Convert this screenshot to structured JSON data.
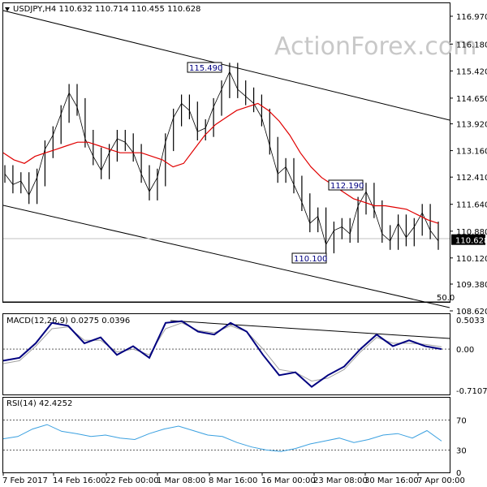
{
  "header": {
    "main": "USDJPY,H4  110.632 110.714 110.455 110.628",
    "macd": "MACD(12,26,9) 0.0275 0.0396",
    "rsi": "RSI(14) 42.4252"
  },
  "watermark": "ActionForex.com",
  "colors": {
    "price": "#000000",
    "ma": "#e00000",
    "macd": "#000080",
    "signal": "#a0a0a0",
    "rsi": "#3aa0e0",
    "channel": "#000000",
    "background": "#ffffff"
  },
  "chart_data": [
    {
      "type": "line",
      "panel": "price",
      "title": "USDJPY,H4",
      "ylim": [
        108.62,
        116.97
      ],
      "y_ticks": [
        "116.970",
        "116.180",
        "115.420",
        "114.650",
        "113.920",
        "113.160",
        "112.410",
        "111.640",
        "110.880",
        "110.120",
        "109.380",
        "108.620"
      ],
      "x_ticks": [
        "7 Feb 2017",
        "14 Feb 16:00",
        "22 Feb 00:00",
        "1 Mar 08:00",
        "8 Mar 16:00",
        "16 Mar 00:00",
        "23 Mar 08:00",
        "30 Mar 16:00",
        "7 Apr 00:00"
      ],
      "last_price": "110.628",
      "series": [
        {
          "values": [
            112.5,
            112.2,
            112.3,
            111.9,
            112.4,
            113.2,
            113.6,
            114.2,
            114.8,
            114.4,
            113.5,
            113.0,
            112.6,
            113.1,
            113.5,
            113.4,
            113.1,
            112.5,
            112.0,
            112.4,
            113.4,
            114.1,
            114.5,
            114.3,
            113.7,
            113.8,
            114.4,
            114.9,
            115.4,
            114.9,
            114.7,
            114.5,
            114.1,
            113.3,
            112.5,
            112.7,
            112.2,
            111.7,
            111.1,
            111.3,
            110.5,
            110.9,
            111.0,
            110.8,
            111.6,
            112.0,
            111.5,
            110.8,
            110.6,
            111.1,
            110.7,
            111.0,
            111.4,
            110.9,
            110.6
          ]
        },
        {
          "name": "",
          "values": [
            113.1,
            112.9,
            112.8,
            113.0,
            113.1,
            113.2,
            113.3,
            113.4,
            113.4,
            113.3,
            113.2,
            113.1,
            113.1,
            113.1,
            113.0,
            112.9,
            112.7,
            112.8,
            113.2,
            113.6,
            113.9,
            114.1,
            114.3,
            114.4,
            114.5,
            114.3,
            114.0,
            113.6,
            113.1,
            112.7,
            112.4,
            112.2,
            112.0,
            111.8,
            111.7,
            111.6,
            111.6,
            111.55,
            111.5,
            111.35,
            111.2,
            111.1
          ]
        }
      ],
      "annotations": [
        {
          "text": "115.490",
          "x": "8 Mar 08:00",
          "y": 115.49
        },
        {
          "text": "112.190",
          "x": "27 Mar",
          "y": 112.19
        },
        {
          "text": "110.100",
          "x": "24 Mar",
          "y": 110.1
        },
        {
          "text": "50.0",
          "y": 108.8
        }
      ]
    },
    {
      "type": "line",
      "panel": "macd",
      "title": "MACD(12,26,9) 0.0275 0.0396",
      "ylim": [
        -0.7107,
        0.5033
      ],
      "y_ticks": [
        "0.5033",
        "0.00",
        "-0.7107"
      ],
      "series": [
        {
          "name": "MACD",
          "values": [
            -0.2,
            -0.15,
            0.1,
            0.45,
            0.4,
            0.1,
            0.2,
            -0.1,
            0.05,
            -0.15,
            0.45,
            0.48,
            0.3,
            0.25,
            0.45,
            0.3,
            -0.1,
            -0.45,
            -0.4,
            -0.65,
            -0.45,
            -0.3,
            0.0,
            0.25,
            0.05,
            0.15,
            0.05,
            0.0
          ]
        },
        {
          "name": "Signal",
          "values": [
            -0.25,
            -0.2,
            0.05,
            0.35,
            0.38,
            0.15,
            0.15,
            -0.05,
            0.0,
            -0.1,
            0.35,
            0.45,
            0.32,
            0.28,
            0.4,
            0.3,
            0.0,
            -0.35,
            -0.4,
            -0.55,
            -0.5,
            -0.35,
            -0.05,
            0.2,
            0.1,
            0.1,
            0.08,
            0.04
          ]
        }
      ]
    },
    {
      "type": "line",
      "panel": "rsi",
      "title": "RSI(14) 42.4252",
      "ylim": [
        0,
        100
      ],
      "y_ticks": [
        "70",
        "30",
        "0"
      ],
      "series": [
        {
          "name": "RSI",
          "values": [
            45,
            48,
            58,
            64,
            55,
            52,
            48,
            50,
            46,
            44,
            52,
            58,
            62,
            56,
            50,
            48,
            40,
            34,
            30,
            28,
            32,
            38,
            42,
            46,
            40,
            44,
            50,
            52,
            46,
            56,
            42
          ]
        }
      ]
    }
  ]
}
